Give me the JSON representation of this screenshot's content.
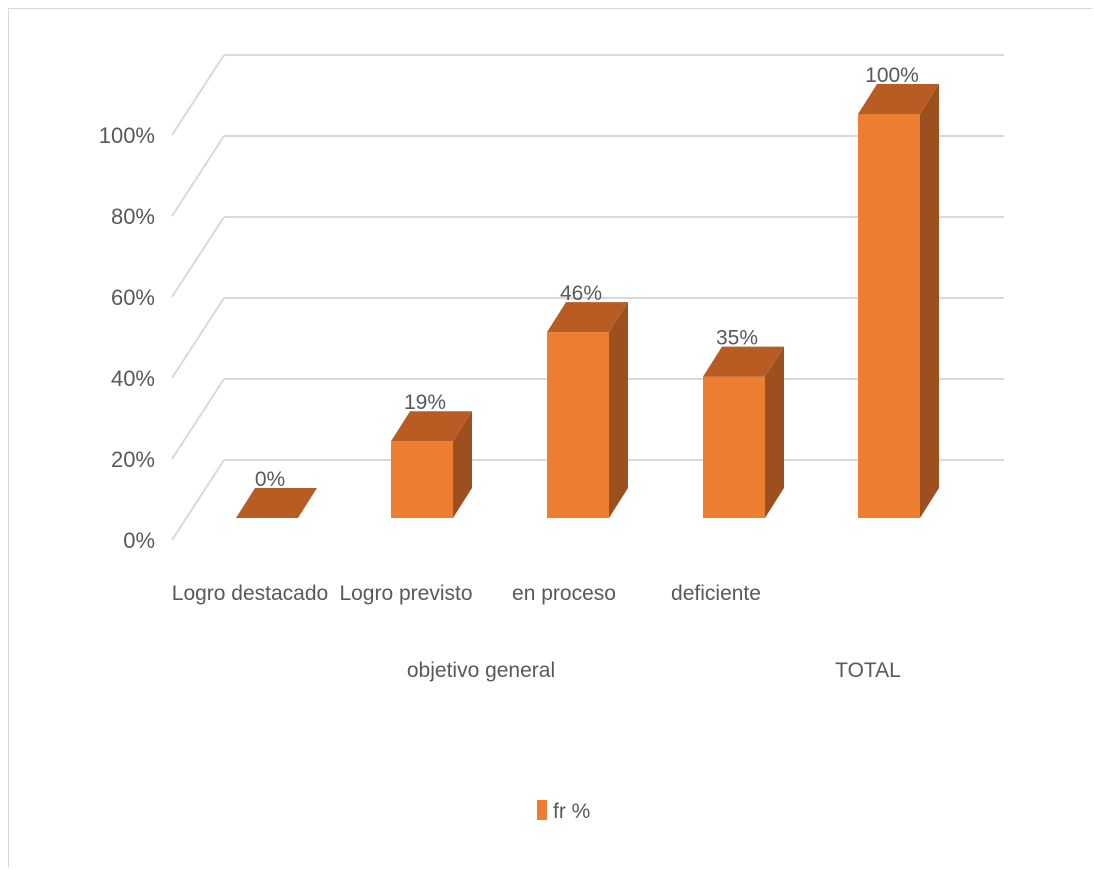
{
  "chart_data": {
    "type": "bar",
    "style": "3d-column",
    "categories": [
      "Logro destacado",
      "Logro previsto",
      "en proceso",
      "deficiente",
      "TOTAL"
    ],
    "groups": [
      {
        "label": "objetivo general",
        "categories": [
          "Logro destacado",
          "Logro previsto",
          "en proceso",
          "deficiente"
        ]
      },
      {
        "label": "TOTAL",
        "categories": [
          "TOTAL"
        ]
      }
    ],
    "series": [
      {
        "name": "fr %",
        "values": [
          0,
          19,
          46,
          35,
          100
        ],
        "color": "#ED7D31",
        "side_color": "#9C4F1F",
        "top_color": "#B85C23"
      }
    ],
    "data_labels": [
      "0%",
      "19%",
      "46%",
      "35%",
      "100%"
    ],
    "y_ticks": [
      "0%",
      "20%",
      "40%",
      "60%",
      "80%",
      "100%"
    ],
    "ylim": [
      0,
      100
    ],
    "grid": true,
    "gridline_color": "#d9d9d9",
    "legend": {
      "position": "bottom",
      "label": "fr %"
    }
  }
}
